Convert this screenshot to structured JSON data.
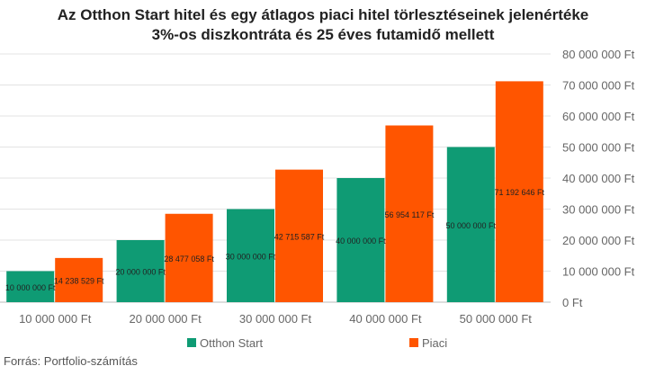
{
  "chart_data": {
    "type": "bar",
    "title_line1": "Az Otthon Start hitel és egy átlagos piaci hitel törlesztéseinek jelenértéke",
    "title_line2": "3%-os diszkontráta és 25 éves futamidő mellett",
    "categories": [
      "10 000 000 Ft",
      "20 000 000 Ft",
      "30 000 000 Ft",
      "40 000 000 Ft",
      "50 000 000 Ft"
    ],
    "series": [
      {
        "name": "Otthon Start",
        "color": "#0f9b74",
        "values": [
          10000000,
          20000000,
          30000000,
          40000000,
          50000000
        ],
        "labels": [
          "10 000 000 Ft",
          "20 000 000 Ft",
          "30 000 000 Ft",
          "40 000 000 Ft",
          "50 000 000 Ft"
        ]
      },
      {
        "name": "Piaci",
        "color": "#ff5500",
        "values": [
          14238529,
          28477058,
          42715587,
          56954117,
          71192646
        ],
        "labels": [
          "14 238 529 Ft",
          "28 477 058 Ft",
          "42 715 587 Ft",
          "56 954 117 Ft",
          "71 192 646 Ft"
        ]
      }
    ],
    "yticks": [
      "0 Ft",
      "10 000 000 Ft",
      "20 000 000 Ft",
      "30 000 000 Ft",
      "40 000 000 Ft",
      "50 000 000 Ft",
      "60 000 000 Ft",
      "70 000 000 Ft",
      "80 000 000 Ft"
    ],
    "ylim": [
      0,
      80000000
    ],
    "grid": true,
    "legend_position": "bottom",
    "source": "Forrás: Portfolio-számítás"
  }
}
